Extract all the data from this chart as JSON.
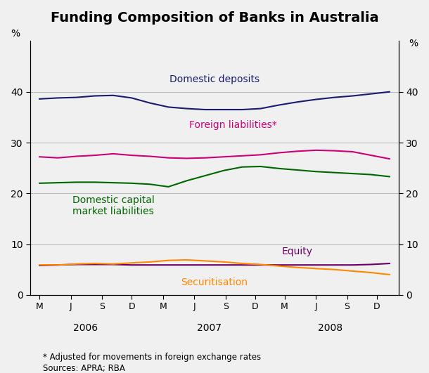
{
  "title": "Funding Composition of Banks in Australia",
  "ylabel_left": "%",
  "ylabel_right": "%",
  "ylim": [
    0,
    50
  ],
  "yticks": [
    0,
    10,
    20,
    30,
    40
  ],
  "background_color": "#f0f0f0",
  "footnote1": "* Adjusted for movements in foreign exchange rates",
  "footnote2": "Sources: APRA; RBA",
  "x_tick_labels": [
    "M",
    "J",
    "S",
    "D",
    "M",
    "J",
    "S",
    "D",
    "M",
    "J",
    "S",
    "D"
  ],
  "x_year_labels": [
    "2006",
    "2007",
    "2008"
  ],
  "series": {
    "domestic_deposits": {
      "label": "Domestic deposits",
      "color": "#1a1a6e",
      "values": [
        38.6,
        38.8,
        38.9,
        39.2,
        39.3,
        38.8,
        37.8,
        37.0,
        36.7,
        36.5,
        36.5,
        36.5,
        36.7,
        37.4,
        38.0,
        38.5,
        38.9,
        39.2,
        39.6,
        40.0
      ]
    },
    "foreign_liabilities": {
      "label": "Foreign liabilities*",
      "color": "#cc0077",
      "values": [
        27.2,
        27.0,
        27.3,
        27.5,
        27.8,
        27.5,
        27.3,
        27.0,
        26.9,
        27.0,
        27.2,
        27.4,
        27.6,
        28.0,
        28.3,
        28.5,
        28.4,
        28.2,
        27.5,
        26.8
      ]
    },
    "domestic_capital": {
      "label": "Domestic capital\nmarket liabilities",
      "color": "#006600",
      "values": [
        22.0,
        22.1,
        22.2,
        22.2,
        22.1,
        22.0,
        21.8,
        21.3,
        22.5,
        23.5,
        24.5,
        25.2,
        25.3,
        24.9,
        24.6,
        24.3,
        24.1,
        23.9,
        23.7,
        23.3
      ]
    },
    "equity": {
      "label": "Equity",
      "color": "#660066",
      "values": [
        5.8,
        5.9,
        6.0,
        6.0,
        6.0,
        5.9,
        5.9,
        5.9,
        5.9,
        5.9,
        5.9,
        5.9,
        5.9,
        5.9,
        5.9,
        5.9,
        5.9,
        5.9,
        6.0,
        6.2
      ]
    },
    "securitisation": {
      "label": "Securitisation",
      "color": "#ff8800",
      "values": [
        5.9,
        5.9,
        6.1,
        6.2,
        6.1,
        6.3,
        6.5,
        6.8,
        6.9,
        6.7,
        6.5,
        6.2,
        6.0,
        5.7,
        5.4,
        5.2,
        5.0,
        4.7,
        4.4,
        4.0
      ]
    }
  }
}
